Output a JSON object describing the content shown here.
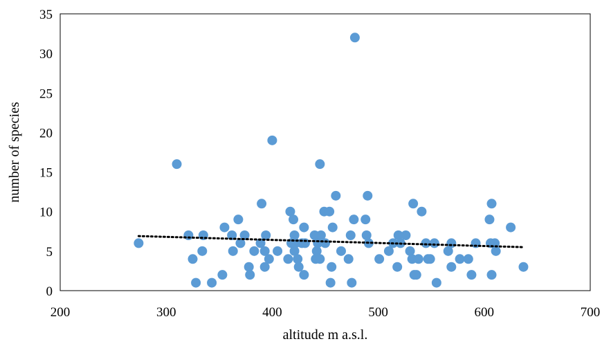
{
  "chart_data": {
    "type": "scatter",
    "title": "",
    "xlabel": "altitude m a.s.l.",
    "ylabel": "number of species",
    "xlim": [
      200,
      700
    ],
    "ylim": [
      0,
      35
    ],
    "xticks": [
      200,
      300,
      400,
      500,
      600,
      700
    ],
    "yticks": [
      0,
      5,
      10,
      15,
      20,
      25,
      30,
      35
    ],
    "grid": false,
    "legend": "none",
    "colors": {
      "points": "#5b9bd5",
      "trendline": "#000000",
      "frame": "#000000"
    },
    "series": [
      {
        "points": [
          [
            274,
            6
          ],
          [
            310,
            16
          ],
          [
            321,
            7
          ],
          [
            325,
            4
          ],
          [
            328,
            1
          ],
          [
            334,
            5
          ],
          [
            335,
            7
          ],
          [
            343,
            1
          ],
          [
            353,
            2
          ],
          [
            355,
            8
          ],
          [
            362,
            7
          ],
          [
            363,
            5
          ],
          [
            368,
            9
          ],
          [
            370,
            6
          ],
          [
            374,
            7
          ],
          [
            378,
            3
          ],
          [
            379,
            2
          ],
          [
            383,
            5
          ],
          [
            389,
            6
          ],
          [
            390,
            11
          ],
          [
            393,
            3
          ],
          [
            393,
            5
          ],
          [
            394,
            7
          ],
          [
            397,
            4
          ],
          [
            400,
            19
          ],
          [
            405,
            5
          ],
          [
            415,
            4
          ],
          [
            417,
            10
          ],
          [
            418,
            6
          ],
          [
            420,
            9
          ],
          [
            421,
            5
          ],
          [
            421,
            7
          ],
          [
            422,
            6
          ],
          [
            424,
            4
          ],
          [
            425,
            3
          ],
          [
            428,
            6
          ],
          [
            430,
            2
          ],
          [
            430,
            8
          ],
          [
            431,
            6
          ],
          [
            440,
            7
          ],
          [
            441,
            4
          ],
          [
            442,
            5
          ],
          [
            443,
            6
          ],
          [
            445,
            16
          ],
          [
            445,
            4
          ],
          [
            446,
            7
          ],
          [
            449,
            10
          ],
          [
            450,
            6
          ],
          [
            454,
            10
          ],
          [
            455,
            1
          ],
          [
            456,
            3
          ],
          [
            457,
            8
          ],
          [
            460,
            12
          ],
          [
            465,
            5
          ],
          [
            472,
            4
          ],
          [
            474,
            7
          ],
          [
            475,
            1
          ],
          [
            477,
            9
          ],
          [
            478,
            32
          ],
          [
            488,
            9
          ],
          [
            489,
            7
          ],
          [
            490,
            12
          ],
          [
            491,
            6
          ],
          [
            501,
            4
          ],
          [
            510,
            5
          ],
          [
            514,
            6
          ],
          [
            518,
            3
          ],
          [
            519,
            7
          ],
          [
            521,
            6
          ],
          [
            526,
            7
          ],
          [
            530,
            5
          ],
          [
            532,
            4
          ],
          [
            533,
            11
          ],
          [
            534,
            2
          ],
          [
            536,
            2
          ],
          [
            538,
            4
          ],
          [
            541,
            10
          ],
          [
            545,
            6
          ],
          [
            547,
            4
          ],
          [
            549,
            4
          ],
          [
            553,
            6
          ],
          [
            555,
            1
          ],
          [
            566,
            5
          ],
          [
            569,
            6
          ],
          [
            569,
            3
          ],
          [
            577,
            4
          ],
          [
            585,
            4
          ],
          [
            588,
            2
          ],
          [
            592,
            6
          ],
          [
            605,
            9
          ],
          [
            606,
            6
          ],
          [
            607,
            11
          ],
          [
            607,
            2
          ],
          [
            610,
            6
          ],
          [
            611,
            5
          ],
          [
            625,
            8
          ],
          [
            637,
            3
          ]
        ]
      }
    ],
    "trendline": {
      "style": "dotted",
      "x": [
        274,
        637
      ],
      "y": [
        6.9,
        5.5
      ]
    }
  }
}
